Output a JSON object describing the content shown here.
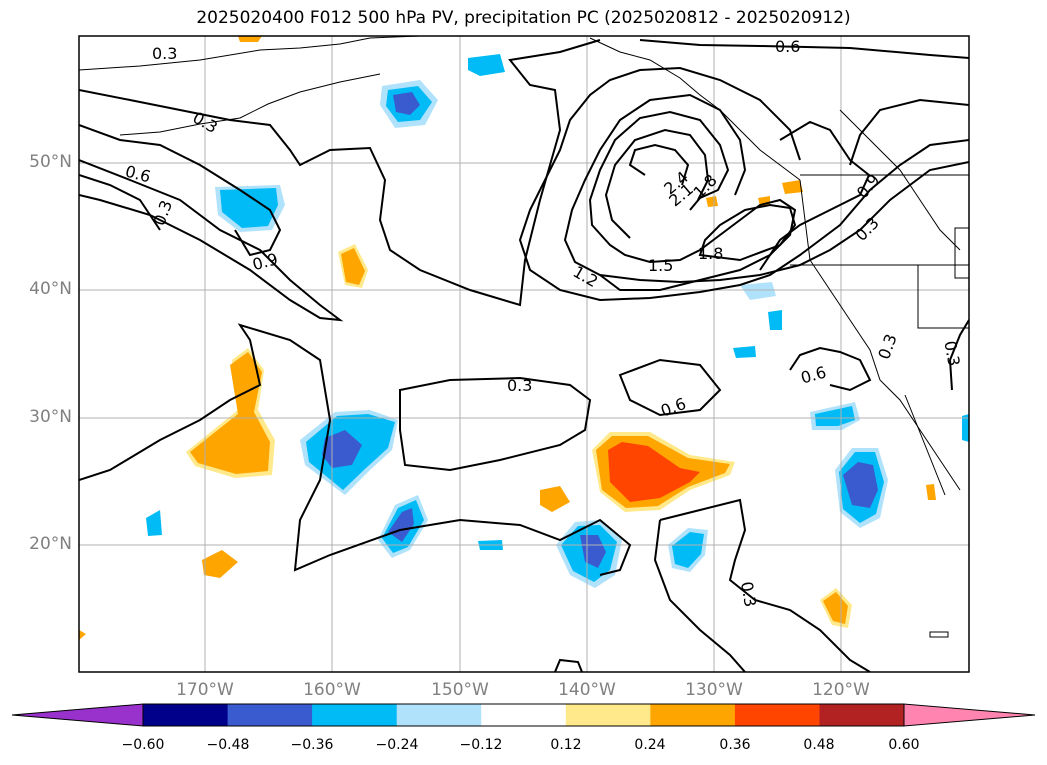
{
  "title": "2025020400 F012 500 hPa PV, precipitation PC (2025020812 - 2025020912)",
  "lat_labels": [
    "50°N",
    "40°N",
    "30°N",
    "20°N"
  ],
  "lon_labels": [
    "170°W",
    "160°W",
    "150°W",
    "140°W",
    "130°W",
    "120°W"
  ],
  "colorbar": {
    "ticks": [
      "−0.60",
      "−0.48",
      "−0.36",
      "−0.24",
      "−0.12",
      "0.12",
      "0.24",
      "0.36",
      "0.48",
      "0.60"
    ],
    "colors": [
      "#9932cc",
      "#00008b",
      "#3a5bd0",
      "#00bbf5",
      "#b0e2fb",
      "#ffffff",
      "#ffe98a",
      "#ffa500",
      "#ff4500",
      "#b22222",
      "#ff85b0"
    ]
  },
  "contour_labels": [
    "0.3",
    "0.6",
    "0.9",
    "1.2",
    "1.5",
    "1.8",
    "2.1",
    "2.4"
  ],
  "colors": {
    "contour": "#000000",
    "grid": "#b0b0b0",
    "coast": "#000000"
  }
}
